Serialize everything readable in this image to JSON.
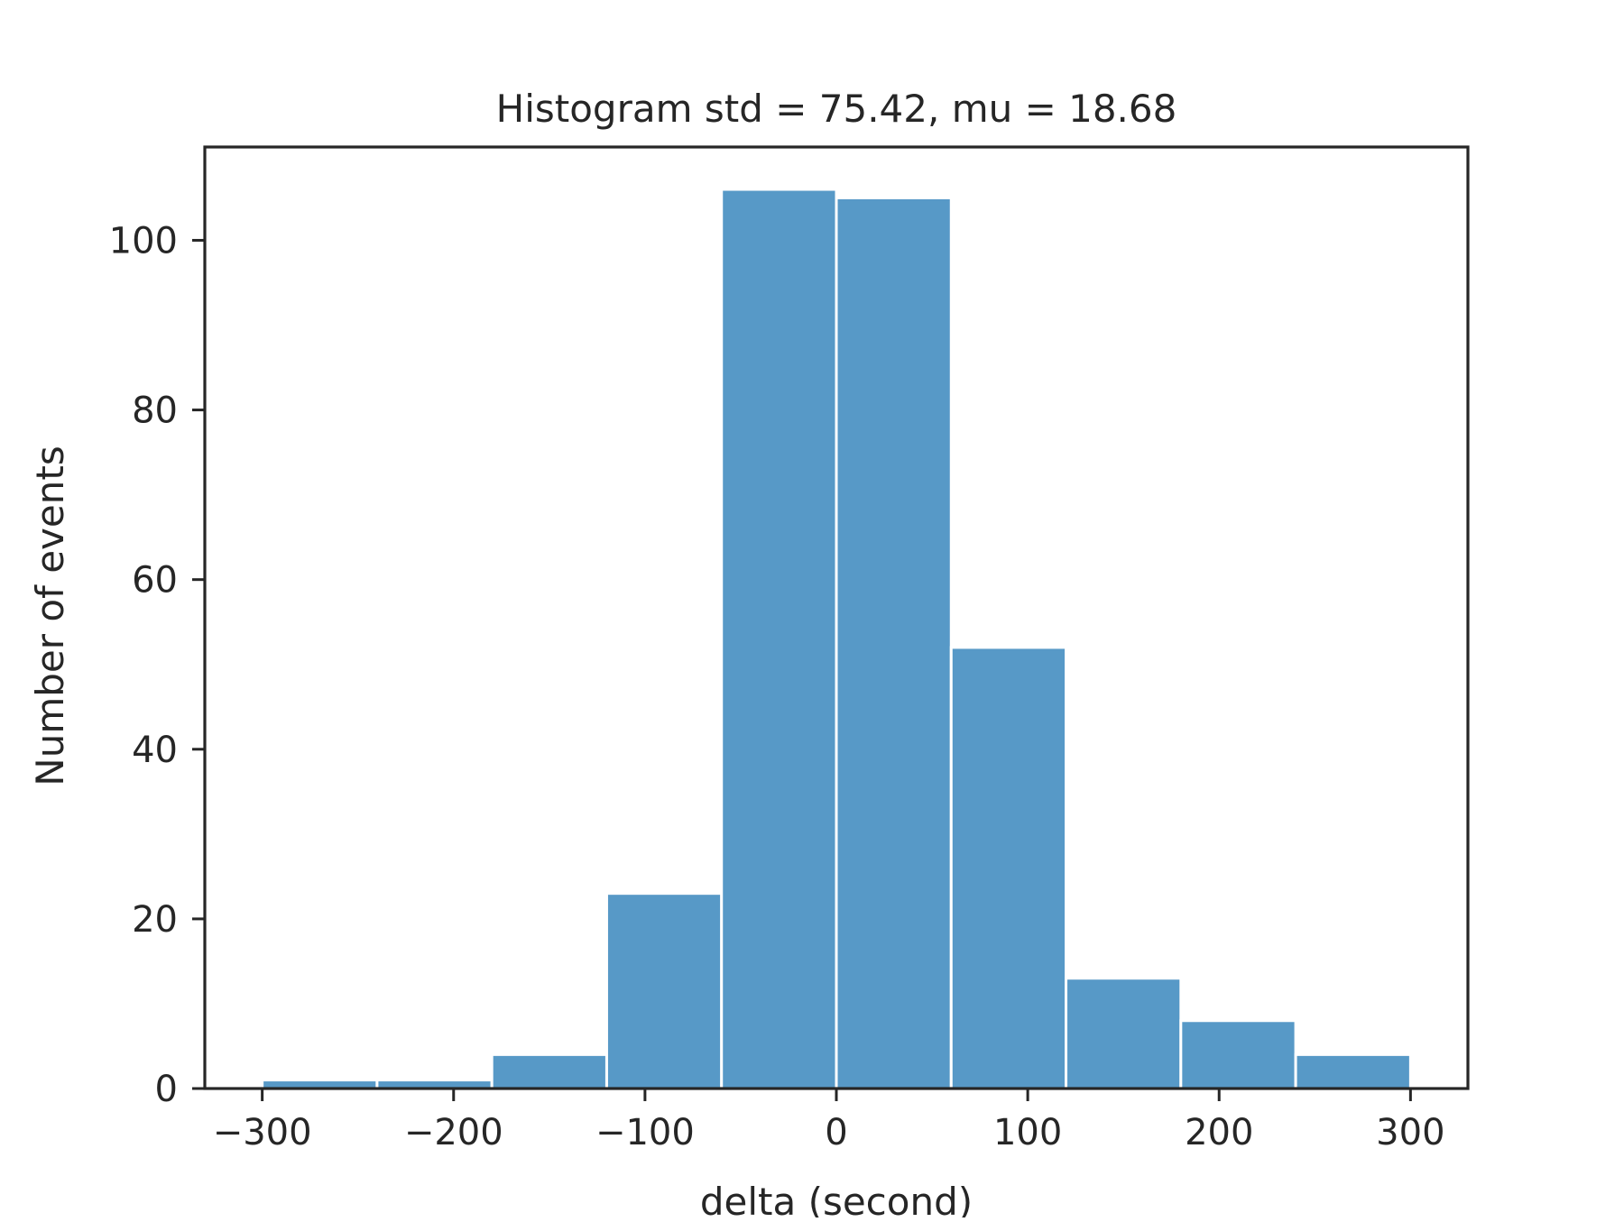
{
  "chart_data": {
    "type": "bar",
    "title": "Histogram std = 75.42, mu = 18.68",
    "xlabel": "delta (second)",
    "ylabel": "Number of events",
    "bin_edges": [
      -300,
      -240,
      -180,
      -120,
      -60,
      0,
      60,
      120,
      180,
      240,
      300
    ],
    "values": [
      1,
      1,
      4,
      23,
      106,
      105,
      52,
      13,
      8,
      4
    ],
    "xlim": [
      -330,
      330
    ],
    "ylim": [
      0,
      111
    ],
    "x_ticks": [
      -300,
      -200,
      -100,
      0,
      100,
      200,
      300
    ],
    "x_tick_labels": [
      "−300",
      "−200",
      "−100",
      "0",
      "100",
      "200",
      "300"
    ],
    "y_ticks": [
      0,
      20,
      40,
      60,
      80,
      100
    ],
    "y_tick_labels": [
      "0",
      "20",
      "40",
      "60",
      "80",
      "100"
    ],
    "bar_color": "#5799c7",
    "grid": false,
    "legend": "none"
  }
}
